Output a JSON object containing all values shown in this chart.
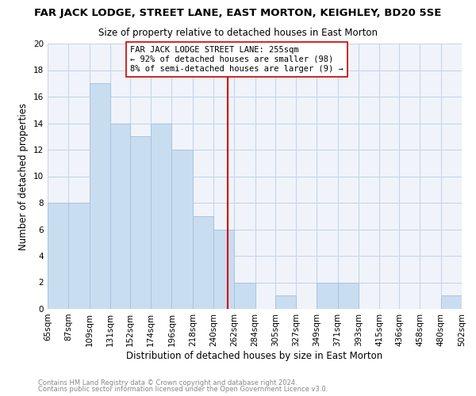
{
  "title": "FAR JACK LODGE, STREET LANE, EAST MORTON, KEIGHLEY, BD20 5SE",
  "subtitle": "Size of property relative to detached houses in East Morton",
  "xlabel": "Distribution of detached houses by size in East Morton",
  "ylabel": "Number of detached properties",
  "bin_edges": [
    65,
    87,
    109,
    131,
    152,
    174,
    196,
    218,
    240,
    262,
    284,
    305,
    327,
    349,
    371,
    393,
    415,
    436,
    458,
    480,
    502
  ],
  "bin_labels": [
    "65sqm",
    "87sqm",
    "109sqm",
    "131sqm",
    "152sqm",
    "174sqm",
    "196sqm",
    "218sqm",
    "240sqm",
    "262sqm",
    "284sqm",
    "305sqm",
    "327sqm",
    "349sqm",
    "371sqm",
    "393sqm",
    "415sqm",
    "436sqm",
    "458sqm",
    "480sqm",
    "502sqm"
  ],
  "counts": [
    8,
    8,
    17,
    14,
    13,
    14,
    12,
    7,
    6,
    2,
    0,
    1,
    0,
    2,
    2,
    0,
    0,
    0,
    0,
    1
  ],
  "bar_color": "#c9ddf0",
  "bar_edge_color": "#a8c4e0",
  "reference_line_x": 255,
  "reference_line_color": "#cc0000",
  "annotation_text": "FAR JACK LODGE STREET LANE: 255sqm\n← 92% of detached houses are smaller (98)\n8% of semi-detached houses are larger (9) →",
  "annotation_box_color": "white",
  "annotation_box_edge": "#cc0000",
  "ylim": [
    0,
    20
  ],
  "yticks": [
    0,
    2,
    4,
    6,
    8,
    10,
    12,
    14,
    16,
    18,
    20
  ],
  "grid_color": "#c8d4e8",
  "background_color": "#ffffff",
  "plot_bg_color": "#f0f4fa",
  "footer1": "Contains HM Land Registry data © Crown copyright and database right 2024.",
  "footer2": "Contains public sector information licensed under the Open Government Licence v3.0."
}
